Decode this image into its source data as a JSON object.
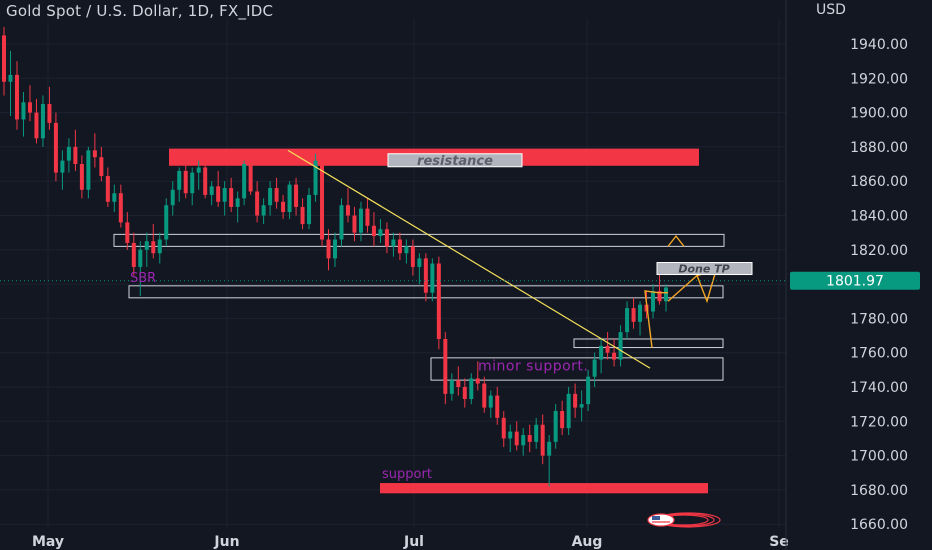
{
  "header": {
    "title": "Gold Spot / U.S. Dollar, 1D, FX_IDC",
    "currency": "USD"
  },
  "price_label": "1801.97",
  "colors": {
    "background": "#131722",
    "up": "#089981",
    "down": "#f23645",
    "trendline": "#f5e15a",
    "projection": "#f5a623",
    "label_purple": "#9c27b0"
  },
  "annotations": {
    "resistance": "resistance",
    "sbr": "SBR",
    "minor_support": "minor support.",
    "support": "support",
    "done_tp": "Done TP"
  },
  "chart_data": {
    "type": "candlestick",
    "title": "Gold Spot / U.S. Dollar, 1D, FX_IDC",
    "y_axis": {
      "ticks": [
        "1940.00",
        "1920.00",
        "1900.00",
        "1880.00",
        "1860.00",
        "1840.00",
        "1820.00",
        "1800.00",
        "1780.00",
        "1760.00",
        "1740.00",
        "1720.00",
        "1700.00",
        "1680.00",
        "1660.00"
      ],
      "range": [
        1652,
        1958
      ],
      "unit": "USD"
    },
    "x_axis": {
      "ticks": [
        "May",
        "Jun",
        "Jul",
        "Aug",
        "Se"
      ]
    },
    "last_price": 1801.97,
    "candles": [
      [
        1945,
        1950,
        1910,
        1918
      ],
      [
        1918,
        1936,
        1898,
        1922
      ],
      [
        1922,
        1930,
        1890,
        1896
      ],
      [
        1896,
        1912,
        1886,
        1906
      ],
      [
        1906,
        1916,
        1895,
        1900
      ],
      [
        1900,
        1908,
        1882,
        1885
      ],
      [
        1885,
        1910,
        1880,
        1905
      ],
      [
        1905,
        1915,
        1890,
        1894
      ],
      [
        1894,
        1900,
        1860,
        1865
      ],
      [
        1865,
        1878,
        1855,
        1872
      ],
      [
        1872,
        1885,
        1865,
        1880
      ],
      [
        1880,
        1890,
        1866,
        1870
      ],
      [
        1870,
        1875,
        1850,
        1855
      ],
      [
        1855,
        1880,
        1850,
        1878
      ],
      [
        1878,
        1888,
        1868,
        1874
      ],
      [
        1874,
        1880,
        1860,
        1863
      ],
      [
        1863,
        1868,
        1845,
        1848
      ],
      [
        1848,
        1858,
        1842,
        1853
      ],
      [
        1853,
        1858,
        1833,
        1836
      ],
      [
        1836,
        1842,
        1820,
        1824
      ],
      [
        1824,
        1830,
        1805,
        1810
      ],
      [
        1810,
        1825,
        1793,
        1820
      ],
      [
        1820,
        1830,
        1810,
        1825
      ],
      [
        1825,
        1835,
        1815,
        1818
      ],
      [
        1818,
        1830,
        1812,
        1826
      ],
      [
        1826,
        1850,
        1822,
        1846
      ],
      [
        1846,
        1860,
        1840,
        1855
      ],
      [
        1855,
        1868,
        1848,
        1866
      ],
      [
        1866,
        1874,
        1850,
        1853
      ],
      [
        1853,
        1868,
        1846,
        1865
      ],
      [
        1865,
        1872,
        1855,
        1868
      ],
      [
        1868,
        1872,
        1850,
        1852
      ],
      [
        1852,
        1860,
        1846,
        1857
      ],
      [
        1857,
        1866,
        1845,
        1848
      ],
      [
        1848,
        1860,
        1840,
        1856
      ],
      [
        1856,
        1862,
        1842,
        1845
      ],
      [
        1845,
        1854,
        1836,
        1850
      ],
      [
        1850,
        1872,
        1846,
        1870
      ],
      [
        1870,
        1874,
        1852,
        1854
      ],
      [
        1854,
        1860,
        1836,
        1840
      ],
      [
        1840,
        1850,
        1835,
        1846
      ],
      [
        1846,
        1860,
        1840,
        1856
      ],
      [
        1856,
        1862,
        1844,
        1848
      ],
      [
        1848,
        1852,
        1838,
        1842
      ],
      [
        1842,
        1860,
        1838,
        1858
      ],
      [
        1858,
        1862,
        1840,
        1845
      ],
      [
        1845,
        1850,
        1832,
        1835
      ],
      [
        1835,
        1856,
        1832,
        1852
      ],
      [
        1852,
        1876,
        1848,
        1872
      ],
      [
        1872,
        1876,
        1822,
        1826
      ],
      [
        1826,
        1832,
        1808,
        1815
      ],
      [
        1815,
        1830,
        1810,
        1826
      ],
      [
        1826,
        1850,
        1822,
        1846
      ],
      [
        1846,
        1856,
        1836,
        1840
      ],
      [
        1840,
        1845,
        1825,
        1830
      ],
      [
        1830,
        1848,
        1825,
        1844
      ],
      [
        1844,
        1850,
        1830,
        1834
      ],
      [
        1834,
        1842,
        1822,
        1828
      ],
      [
        1828,
        1838,
        1824,
        1832
      ],
      [
        1832,
        1836,
        1818,
        1822
      ],
      [
        1822,
        1830,
        1816,
        1826
      ],
      [
        1826,
        1830,
        1814,
        1818
      ],
      [
        1818,
        1826,
        1812,
        1822
      ],
      [
        1822,
        1826,
        1805,
        1810
      ],
      [
        1810,
        1818,
        1800,
        1815
      ],
      [
        1815,
        1818,
        1790,
        1795
      ],
      [
        1795,
        1815,
        1790,
        1812
      ],
      [
        1812,
        1816,
        1762,
        1768
      ],
      [
        1768,
        1772,
        1730,
        1736
      ],
      [
        1736,
        1748,
        1732,
        1744
      ],
      [
        1744,
        1752,
        1735,
        1740
      ],
      [
        1740,
        1745,
        1728,
        1733
      ],
      [
        1733,
        1748,
        1730,
        1745
      ],
      [
        1745,
        1755,
        1738,
        1742
      ],
      [
        1742,
        1746,
        1725,
        1728
      ],
      [
        1728,
        1738,
        1722,
        1735
      ],
      [
        1735,
        1740,
        1718,
        1722
      ],
      [
        1722,
        1726,
        1705,
        1710
      ],
      [
        1710,
        1718,
        1702,
        1714
      ],
      [
        1714,
        1720,
        1703,
        1706
      ],
      [
        1706,
        1716,
        1700,
        1712
      ],
      [
        1712,
        1718,
        1702,
        1708
      ],
      [
        1708,
        1722,
        1704,
        1718
      ],
      [
        1718,
        1724,
        1695,
        1700
      ],
      [
        1700,
        1712,
        1682,
        1708
      ],
      [
        1708,
        1730,
        1704,
        1726
      ],
      [
        1726,
        1732,
        1712,
        1716
      ],
      [
        1716,
        1740,
        1712,
        1736
      ],
      [
        1736,
        1742,
        1722,
        1728
      ],
      [
        1728,
        1738,
        1720,
        1730
      ],
      [
        1730,
        1750,
        1726,
        1746
      ],
      [
        1746,
        1760,
        1740,
        1756
      ],
      [
        1756,
        1768,
        1748,
        1764
      ],
      [
        1764,
        1772,
        1756,
        1760
      ],
      [
        1760,
        1768,
        1752,
        1756
      ],
      [
        1756,
        1776,
        1752,
        1772
      ],
      [
        1772,
        1790,
        1768,
        1786
      ],
      [
        1786,
        1792,
        1774,
        1778
      ],
      [
        1778,
        1790,
        1770,
        1788
      ],
      [
        1788,
        1796,
        1780,
        1784
      ],
      [
        1784,
        1800,
        1780,
        1796
      ],
      [
        1796,
        1806,
        1788,
        1790
      ],
      [
        1790,
        1800,
        1784,
        1798
      ]
    ],
    "annotations": [
      "resistance",
      "SBR",
      "minor support.",
      "support",
      "Done TP"
    ]
  }
}
